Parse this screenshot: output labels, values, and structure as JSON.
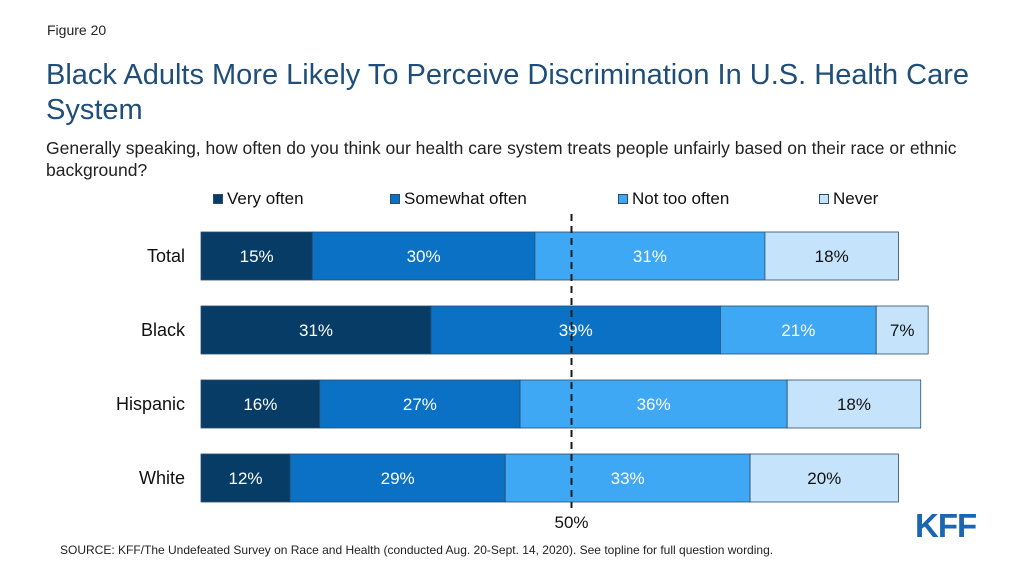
{
  "figure_label": "Figure 20",
  "logo_text": "KFF",
  "source": "SOURCE: KFF/The Undefeated Survey on Race and Health (conducted Aug. 20-Sept. 14, 2020). See topline for full question wording.",
  "chart_data": {
    "type": "bar",
    "orientation": "horizontal",
    "stacked": true,
    "title": "Black Adults More Likely To Perceive Discrimination In U.S. Health Care System",
    "subtitle": "Generally speaking, how often do you think our health care system treats people unfairly based on their race or ethnic background?",
    "categories": [
      "Total",
      "Black",
      "Hispanic",
      "White"
    ],
    "series": [
      {
        "name": "Very often",
        "values": [
          15,
          31,
          16,
          12
        ],
        "color": "#063c66"
      },
      {
        "name": "Somewhat often",
        "values": [
          30,
          39,
          27,
          29
        ],
        "color": "#0a71c5"
      },
      {
        "name": "Not too often",
        "values": [
          31,
          21,
          36,
          33
        ],
        "color": "#3ea8f5"
      },
      {
        "name": "Never",
        "values": [
          18,
          7,
          18,
          20
        ],
        "color": "#c5e4fb"
      }
    ],
    "value_suffix": "%",
    "reference_line": {
      "value": 50,
      "label": "50%",
      "style": "dashed"
    },
    "legend_position": "top",
    "grid": false
  }
}
